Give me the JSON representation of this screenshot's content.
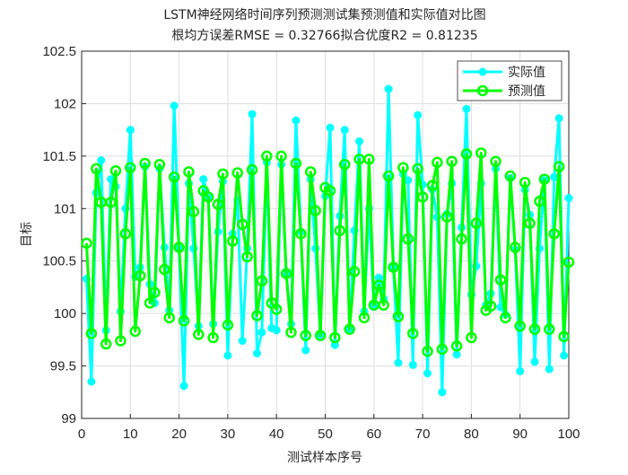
{
  "chart_data": {
    "type": "line",
    "title": "LSTM神经网络时间序列预测测试集预测值和实际值对比图",
    "subtitle": "根均方误差RMSE = 0.32766拟合优度R2 = 0.81235",
    "x_label": "测试样本序号",
    "y_label": "目标",
    "x": [
      1,
      2,
      3,
      4,
      5,
      6,
      7,
      8,
      9,
      10,
      11,
      12,
      13,
      14,
      15,
      16,
      17,
      18,
      19,
      20,
      21,
      22,
      23,
      24,
      25,
      26,
      27,
      28,
      29,
      30,
      31,
      32,
      33,
      34,
      35,
      36,
      37,
      38,
      39,
      40,
      41,
      42,
      43,
      44,
      45,
      46,
      47,
      48,
      49,
      50,
      51,
      52,
      53,
      54,
      55,
      56,
      57,
      58,
      59,
      60,
      61,
      62,
      63,
      64,
      65,
      66,
      67,
      68,
      69,
      70,
      71,
      72,
      73,
      74,
      75,
      76,
      77,
      78,
      79,
      80,
      81,
      82,
      83,
      84,
      85,
      86,
      87,
      88,
      89,
      90,
      91,
      92,
      93,
      94,
      95,
      96,
      97,
      98,
      99,
      100
    ],
    "series": [
      {
        "name": "实际值",
        "color": "#00ffff",
        "marker": "filled",
        "values": [
          100.33,
          99.35,
          101.15,
          101.46,
          99.84,
          101.28,
          101.21,
          100.02,
          101.0,
          101.75,
          100.35,
          100.44,
          101.4,
          100.28,
          100.1,
          101.38,
          100.63,
          100.03,
          101.98,
          100.62,
          99.31,
          101.24,
          100.62,
          99.88,
          101.28,
          101.1,
          99.9,
          100.78,
          101.26,
          99.6,
          100.76,
          101.08,
          99.74,
          100.62,
          101.9,
          99.62,
          99.82,
          101.44,
          99.86,
          99.84,
          101.42,
          100.38,
          99.9,
          101.84,
          100.78,
          99.65,
          101.28,
          100.62,
          99.8,
          101.12,
          101.77,
          99.7,
          100.93,
          101.75,
          99.85,
          100.79,
          101.64,
          100.02,
          101.0,
          100.07,
          100.34,
          100.14,
          102.14,
          100.44,
          99.53,
          101.33,
          101.27,
          99.51,
          101.89,
          101.23,
          99.43,
          101.18,
          100.92,
          99.25,
          100.95,
          101.24,
          99.61,
          100.82,
          101.95,
          100.18,
          100.45,
          101.24,
          100.08,
          100.19,
          101.38,
          100.06,
          99.99,
          101.29,
          100.61,
          99.45,
          101.18,
          100.94,
          99.54,
          100.62,
          101.27,
          99.47,
          101.3,
          101.86,
          99.6,
          101.1
        ]
      },
      {
        "name": "预测值",
        "color": "#00ff00",
        "marker": "open",
        "values": [
          100.67,
          99.81,
          101.38,
          101.06,
          99.71,
          101.06,
          101.36,
          99.74,
          100.76,
          101.39,
          99.83,
          100.36,
          101.43,
          100.1,
          100.2,
          101.42,
          100.42,
          99.96,
          101.3,
          100.63,
          99.93,
          101.35,
          100.97,
          99.8,
          101.17,
          101.11,
          99.77,
          101.04,
          101.33,
          99.89,
          100.69,
          101.34,
          100.85,
          100.54,
          101.37,
          99.98,
          100.31,
          101.5,
          100.1,
          100.04,
          101.5,
          100.38,
          99.82,
          101.43,
          100.76,
          99.79,
          101.35,
          100.98,
          99.79,
          101.2,
          101.17,
          99.77,
          100.79,
          101.42,
          99.85,
          100.4,
          101.47,
          99.96,
          101.47,
          100.08,
          100.27,
          100.08,
          101.31,
          100.44,
          99.97,
          101.39,
          100.71,
          99.81,
          101.38,
          101.11,
          99.64,
          101.22,
          101.44,
          99.66,
          100.92,
          101.45,
          99.69,
          100.71,
          101.52,
          99.77,
          100.86,
          101.53,
          100.03,
          100.07,
          101.45,
          100.32,
          99.96,
          101.31,
          100.63,
          99.88,
          101.25,
          100.86,
          99.85,
          101.07,
          101.28,
          99.85,
          100.76,
          101.4,
          99.78,
          100.49
        ]
      }
    ],
    "xlim": [
      0,
      100
    ],
    "xticks": [
      0,
      10,
      20,
      30,
      40,
      50,
      60,
      70,
      80,
      90,
      100
    ],
    "ylim": [
      99,
      102.5
    ],
    "yticks": [
      99,
      99.5,
      100,
      100.5,
      101,
      101.5,
      102,
      102.5
    ],
    "grid": true,
    "legend": "northeast"
  }
}
